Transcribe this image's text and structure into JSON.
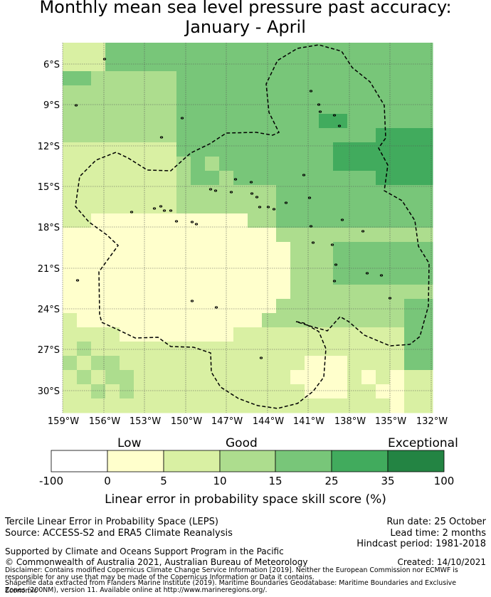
{
  "title": "Monthly mean sea level pressure past accuracy:\nJanuary - April",
  "map": {
    "lat_labels": [
      "6°S",
      "9°S",
      "12°S",
      "15°S",
      "18°S",
      "21°S",
      "24°S",
      "27°S",
      "30°S"
    ],
    "lon_labels": [
      "159°W",
      "156°W",
      "153°W",
      "150°W",
      "147°W",
      "144°W",
      "141°W",
      "138°W",
      "135°W",
      "132°W"
    ],
    "colors": {
      "pale_yellow": "#ffffcc",
      "light_lime": "#d9f0a3",
      "light_green": "#addd8e",
      "medium_green": "#78c679",
      "green": "#41ab5d",
      "dark_green": "#238443"
    }
  },
  "colorbar": {
    "category_labels": [
      "Low",
      "Good",
      "Exceptional"
    ],
    "ticks": [
      "-100",
      "0",
      "5",
      "10",
      "15",
      "25",
      "35",
      "100"
    ],
    "colors": [
      "#ffffff",
      "#ffffcc",
      "#d9f0a3",
      "#addd8e",
      "#78c679",
      "#41ab5d",
      "#238443"
    ],
    "title": "Linear error in probability space skill score (%)"
  },
  "info": {
    "line1": "Tercile Linear Error in Probability Space (LEPS)",
    "line2": "Source: ACCESS-S2 and ERA5 Climate Reanalysis",
    "run_date": "Run date: 25 October",
    "lead_time": "Lead time: 2 months",
    "hindcast": "Hindcast period: 1981-2018",
    "support": "Supported by Climate and Oceans Support Program in the Pacific",
    "copyright": "© Commonwealth of Australia 2021, Australian Bureau of Meteorology",
    "created": "Created: 14/10/2021",
    "disclaimer1": "Disclaimer: Contains modified Copernicus Climate Change Service Information [2019]. Neither the European Commission nor ECMWF is",
    "disclaimer2": "responsible for any use that may be made of the Copernicus Information or Data it contains.",
    "shapefile1": "Shapefile data extracted from Flanders Marine Institute (2019). Maritime Boundaries Geodatabase: Maritime Boundaries and Exclusive Economic",
    "shapefile2": "Zones (200NM), version 11. Available online at http://www.marineregions.org/."
  }
}
